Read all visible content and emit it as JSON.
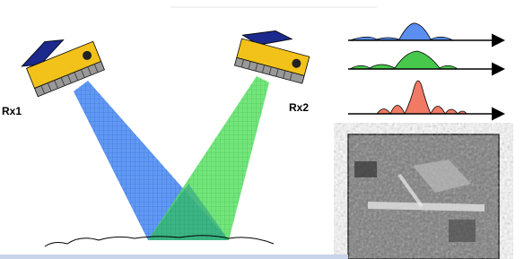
{
  "receivers": [
    {
      "label": "Rx1"
    },
    {
      "label": "Rx2"
    }
  ]
}
